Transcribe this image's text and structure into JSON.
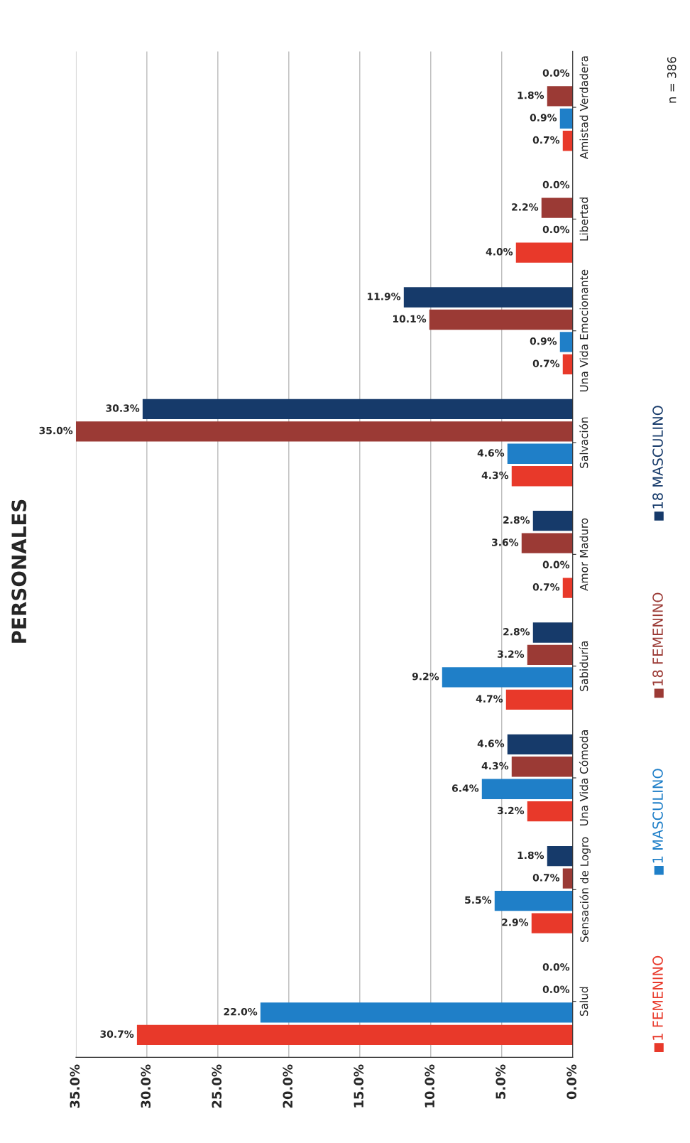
{
  "chart_data": {
    "type": "bar",
    "orientation": "horizontal",
    "title": "PERSONALES",
    "categories": [
      "Amistad Verdadera",
      "Libertad",
      "Una Vida Emocionante",
      "Salvación",
      "Amor Maduro",
      "Sabiduría",
      "Una Vida Cómoda",
      "Sensación de Logro",
      "Salud"
    ],
    "series": [
      {
        "name": "1 FEMENINO",
        "color": "#e8392a",
        "values": [
          0.7,
          4.0,
          0.7,
          4.3,
          0.7,
          4.7,
          3.2,
          2.9,
          30.7
        ]
      },
      {
        "name": "1 MASCULINO",
        "color": "#1f7fc8",
        "values": [
          0.9,
          0.0,
          0.9,
          4.6,
          0.0,
          9.2,
          6.4,
          5.5,
          22.0
        ]
      },
      {
        "name": "18 FEMENINO",
        "color": "#9b3a35",
        "values": [
          1.8,
          2.2,
          10.1,
          35.0,
          3.6,
          3.2,
          4.3,
          0.7,
          0.0
        ]
      },
      {
        "name": "18 MASCULINO",
        "color": "#163a6a",
        "values": [
          0.0,
          0.0,
          11.9,
          30.3,
          2.8,
          2.8,
          4.6,
          1.8,
          0.0
        ]
      }
    ],
    "xlim": [
      35,
      0
    ],
    "xticks": [
      {
        "value": 35,
        "label": "35.0%"
      },
      {
        "value": 30,
        "label": "30.0%"
      },
      {
        "value": 25,
        "label": "25.0%"
      },
      {
        "value": 20,
        "label": "20.0%"
      },
      {
        "value": 15,
        "label": "15.0%"
      },
      {
        "value": 10,
        "label": "10.0%"
      },
      {
        "value": 5,
        "label": "5.0%"
      },
      {
        "value": 0,
        "label": "0.0%"
      }
    ],
    "value_labels": [
      [
        "0.7%",
        "4.0%",
        "0.7%",
        "4.3%",
        "0.7%",
        "4.7%",
        "3.2%",
        "2.9%",
        "30.7%"
      ],
      [
        "0.9%",
        "0.0%",
        "0.9%",
        "4.6%",
        "0.0%",
        "9.2%",
        "6.4%",
        "5.5%",
        "22.0%"
      ],
      [
        "1.8%",
        "2.2%",
        "10.1%",
        "35.0%",
        "3.6%",
        "3.2%",
        "4.3%",
        "0.7%",
        "0.0%"
      ],
      [
        "0.0%",
        "0.0%",
        "11.9%",
        "30.3%",
        "2.8%",
        "2.8%",
        "4.6%",
        "1.8%",
        "0.0%"
      ]
    ],
    "grid": "x",
    "legend": "right",
    "annotations": [
      "n = 386"
    ]
  }
}
